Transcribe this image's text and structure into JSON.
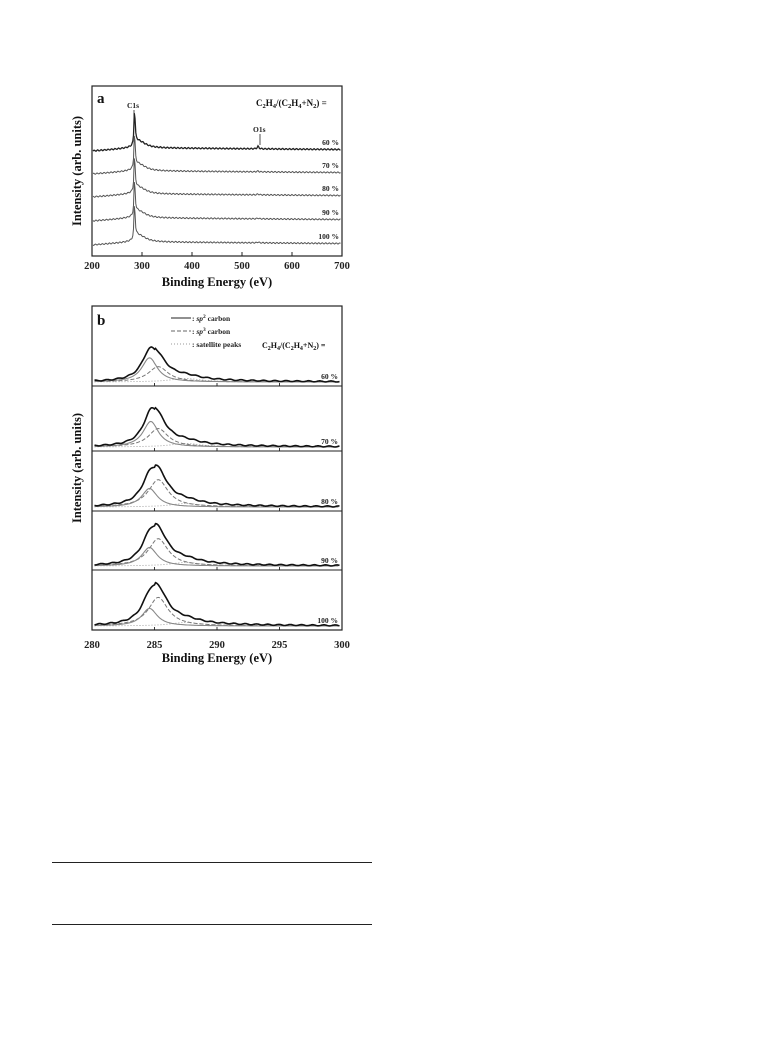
{
  "chart_data": [
    {
      "panel": "a",
      "type": "line",
      "xlabel": "Binding Energy (eV)",
      "ylabel": "Intensity (arb. units)",
      "xlim": [
        200,
        700
      ],
      "xticks": [
        200,
        300,
        400,
        500,
        600,
        700
      ],
      "legend_title": {
        "base": "C",
        "s1": "2",
        "mid1": "H",
        "s2": "4",
        "mid2": "/(C",
        "s3": "2",
        "mid3": "H",
        "s4": "4",
        "mid4": "+N",
        "s5": "2",
        "end": ") ="
      },
      "annotations": [
        {
          "text": "C1s",
          "x": 285
        },
        {
          "text": "O1s",
          "x": 532
        }
      ],
      "series": [
        {
          "name": "60 %",
          "color": "#222222",
          "c1s_peak": 1.0,
          "o1s_peak": 0.06
        },
        {
          "name": "70 %",
          "color": "#555555",
          "c1s_peak": 1.0,
          "o1s_peak": 0.02
        },
        {
          "name": "80 %",
          "color": "#555555",
          "c1s_peak": 1.0,
          "o1s_peak": 0.02
        },
        {
          "name": "90 %",
          "color": "#555555",
          "c1s_peak": 1.0,
          "o1s_peak": 0.02
        },
        {
          "name": "100 %",
          "color": "#555555",
          "c1s_peak": 1.0,
          "o1s_peak": 0.02
        }
      ]
    },
    {
      "panel": "b",
      "type": "line",
      "xlabel": "Binding Energy (eV)",
      "ylabel": "Intensity (arb. units)",
      "xlim": [
        280,
        300
      ],
      "xticks": [
        280,
        285,
        290,
        295,
        300
      ],
      "legend": [
        {
          "style": "solid",
          "italic": "sp",
          "sup": "2",
          "text": " carbon"
        },
        {
          "style": "dashed",
          "italic": "sp",
          "sup": "3",
          "text": " carbon"
        },
        {
          "style": "dotted",
          "italic": "",
          "sup": "",
          "text": ": satellite peaks"
        }
      ],
      "legend_title": {
        "base": "C",
        "s1": "2",
        "mid1": "H",
        "s2": "4",
        "mid2": "/(C",
        "s3": "2",
        "mid3": "H",
        "s4": "4",
        "mid4": "+N",
        "s5": "2",
        "end": ") ="
      },
      "panels": [
        {
          "label": "60 %",
          "sp2_center": 284.6,
          "sp2_amp": 0.55,
          "sp3_center": 285.3,
          "sp3_amp": 0.35,
          "total_amp": 0.92
        },
        {
          "label": "70 %",
          "sp2_center": 284.7,
          "sp2_amp": 0.58,
          "sp3_center": 285.3,
          "sp3_amp": 0.42,
          "total_amp": 0.92
        },
        {
          "label": "80 %",
          "sp2_center": 284.6,
          "sp2_amp": 0.42,
          "sp3_center": 285.3,
          "sp3_amp": 0.62,
          "total_amp": 0.95
        },
        {
          "label": "90 %",
          "sp2_center": 284.6,
          "sp2_amp": 0.42,
          "sp3_center": 285.3,
          "sp3_amp": 0.62,
          "total_amp": 0.95
        },
        {
          "label": "100 %",
          "sp2_center": 284.6,
          "sp2_amp": 0.4,
          "sp3_center": 285.3,
          "sp3_amp": 0.65,
          "total_amp": 0.95
        }
      ]
    }
  ]
}
